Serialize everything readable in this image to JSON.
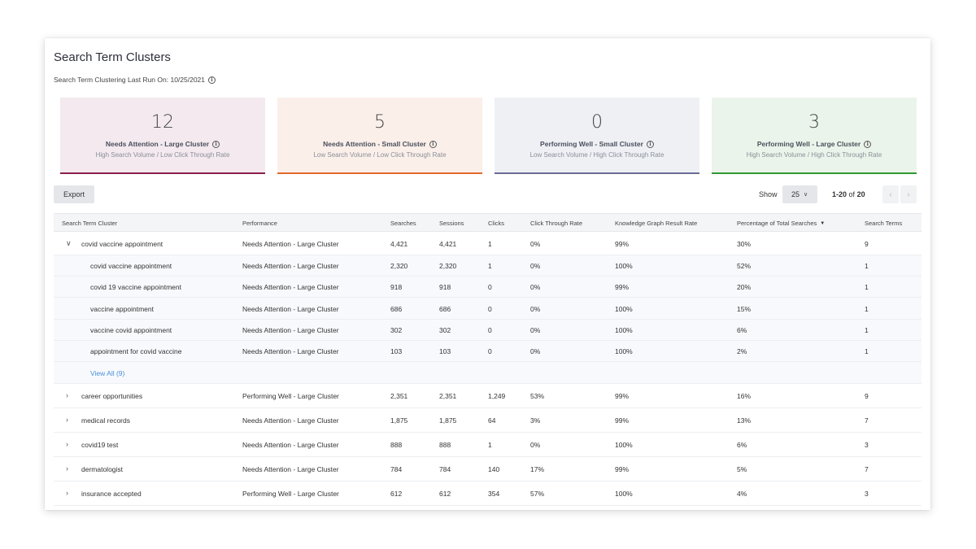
{
  "page": {
    "title": "Search Term Clusters",
    "last_run": "Search Term Clustering Last Run On: 10/25/2021"
  },
  "cards": [
    {
      "count": "12",
      "title": "Needs Attention - Large Cluster",
      "subtitle": "High Search Volume / Low Click Through Rate",
      "bg": "#f3e9ee",
      "accent": "#8a1f4c"
    },
    {
      "count": "5",
      "title": "Needs Attention - Small Cluster",
      "subtitle": "Low Search Volume / Low Click Through Rate",
      "bg": "#fbefea",
      "accent": "#e2692b"
    },
    {
      "count": "0",
      "title": "Performing Well - Small Cluster",
      "subtitle": "Low Search Volume / High Click Through Rate",
      "bg": "#eef0f4",
      "accent": "#6a6a98"
    },
    {
      "count": "3",
      "title": "Performing Well - Large Cluster",
      "subtitle": "High Search Volume / High Click Through Rate",
      "bg": "#ebf4ea",
      "accent": "#2e9a33"
    }
  ],
  "toolbar": {
    "export_label": "Export",
    "show_label": "Show",
    "page_size": "25",
    "range_text": "1-20",
    "range_of": "of",
    "range_total": "20"
  },
  "table": {
    "columns": [
      "Search Term Cluster",
      "Performance",
      "Searches",
      "Sessions",
      "Clicks",
      "Click Through Rate",
      "Knowledge Graph Result Rate",
      "Percentage of Total Searches",
      "Search Terms"
    ],
    "rows": [
      {
        "type": "parent",
        "expanded": true,
        "cells": [
          "covid vaccine appointment",
          "Needs Attention - Large Cluster",
          "4,421",
          "4,421",
          "1",
          "0%",
          "99%",
          "30%",
          "9"
        ]
      },
      {
        "type": "child",
        "cells": [
          "covid vaccine appointment",
          "Needs Attention - Large Cluster",
          "2,320",
          "2,320",
          "1",
          "0%",
          "100%",
          "52%",
          "1"
        ]
      },
      {
        "type": "child",
        "cells": [
          "covid 19 vaccine appointment",
          "Needs Attention - Large Cluster",
          "918",
          "918",
          "0",
          "0%",
          "99%",
          "20%",
          "1"
        ]
      },
      {
        "type": "child",
        "cells": [
          "vaccine appointment",
          "Needs Attention - Large Cluster",
          "686",
          "686",
          "0",
          "0%",
          "100%",
          "15%",
          "1"
        ]
      },
      {
        "type": "child",
        "cells": [
          "vaccine covid appointment",
          "Needs Attention - Large Cluster",
          "302",
          "302",
          "0",
          "0%",
          "100%",
          "6%",
          "1"
        ]
      },
      {
        "type": "child",
        "cells": [
          "appointment for covid vaccine",
          "Needs Attention - Large Cluster",
          "103",
          "103",
          "0",
          "0%",
          "100%",
          "2%",
          "1"
        ]
      },
      {
        "type": "viewall",
        "label": "View All (9)"
      },
      {
        "type": "parent",
        "expanded": false,
        "cells": [
          "career opportunities",
          "Performing Well - Large Cluster",
          "2,351",
          "2,351",
          "1,249",
          "53%",
          "99%",
          "16%",
          "9"
        ]
      },
      {
        "type": "parent",
        "expanded": false,
        "cells": [
          "medical records",
          "Needs Attention - Large Cluster",
          "1,875",
          "1,875",
          "64",
          "3%",
          "99%",
          "13%",
          "7"
        ]
      },
      {
        "type": "parent",
        "expanded": false,
        "cells": [
          "covid19 test",
          "Needs Attention - Large Cluster",
          "888",
          "888",
          "1",
          "0%",
          "100%",
          "6%",
          "3"
        ]
      },
      {
        "type": "parent",
        "expanded": false,
        "cells": [
          "dermatologist",
          "Needs Attention - Large Cluster",
          "784",
          "784",
          "140",
          "17%",
          "99%",
          "5%",
          "7"
        ]
      },
      {
        "type": "parent",
        "expanded": false,
        "cells": [
          "insurance accepted",
          "Performing Well - Large Cluster",
          "612",
          "612",
          "354",
          "57%",
          "100%",
          "4%",
          "3"
        ]
      }
    ]
  }
}
